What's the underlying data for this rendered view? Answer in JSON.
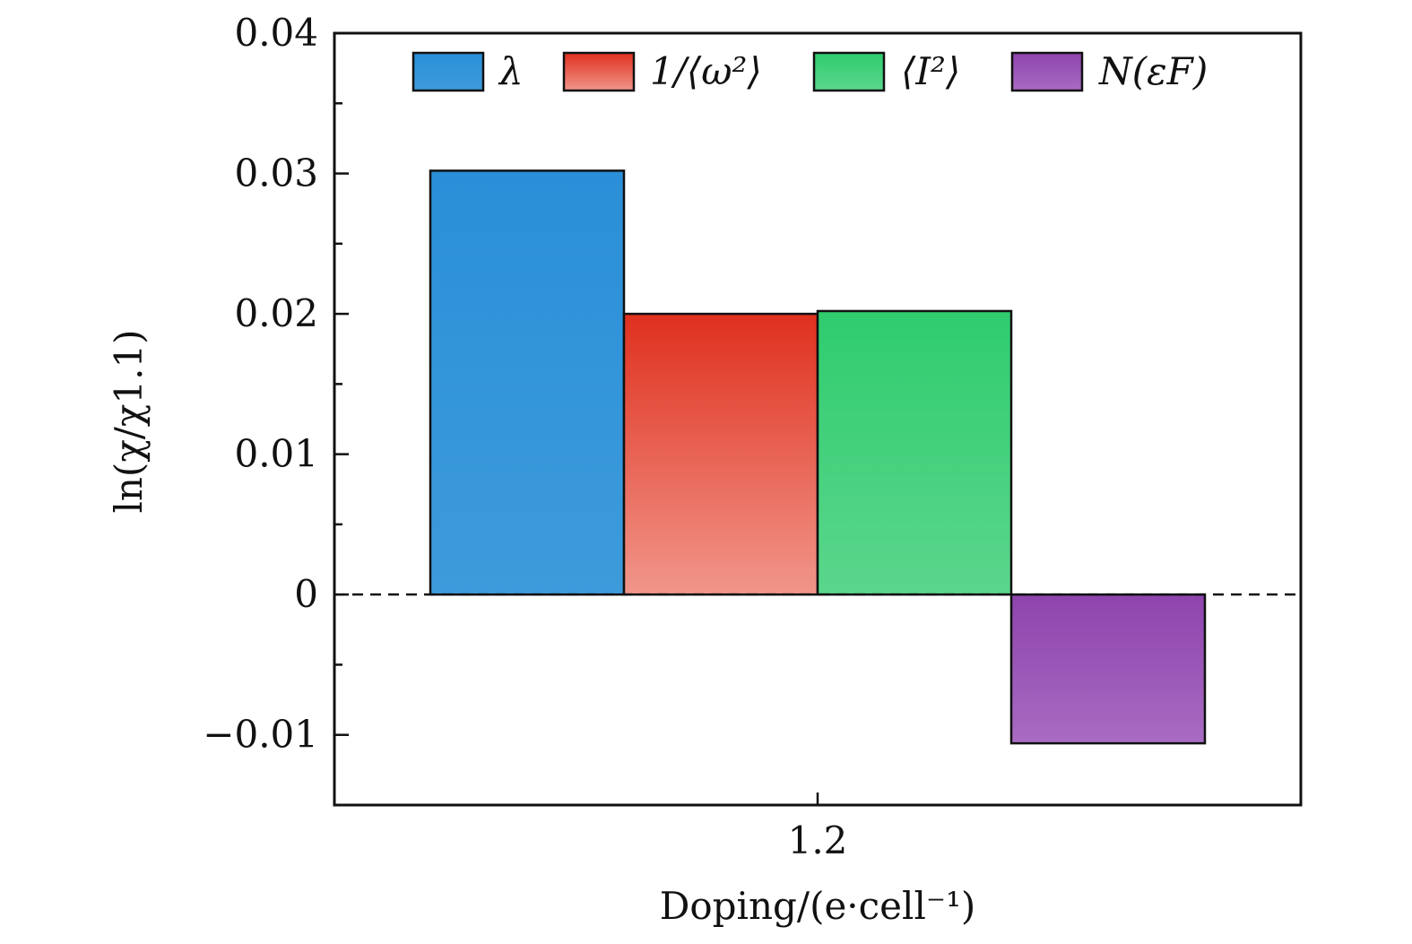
{
  "chart_data": {
    "type": "bar",
    "categories": [
      "1.2"
    ],
    "series": [
      {
        "name": "λ",
        "values": [
          0.0302
        ],
        "color_top": "#2a8fd8",
        "color_bottom": "#3d9bdb"
      },
      {
        "name": "1/⟨ω²⟩",
        "values": [
          0.02
        ],
        "color_top": "#e0301e",
        "color_bottom": "#f0968a"
      },
      {
        "name": "⟨I²⟩",
        "values": [
          0.0202
        ],
        "color_top": "#2fcc6e",
        "color_bottom": "#5bd68c"
      },
      {
        "name": "N(εF)",
        "values": [
          -0.0106
        ],
        "color_top": "#8e44ad",
        "color_bottom": "#a86bc2"
      }
    ],
    "xlabel": "Doping/(e·cell⁻¹)",
    "ylabel": "ln(χ/χ1.1)",
    "ylim": [
      -0.015,
      0.04
    ],
    "yticks": [
      "−0.01",
      "0",
      "0.01",
      "0.02",
      "0.03",
      "0.04"
    ],
    "ytick_values": [
      -0.01,
      0,
      0.01,
      0.02,
      0.03,
      0.04
    ],
    "zero_line": "dashed",
    "legend_position": "top-center",
    "grid": false
  }
}
